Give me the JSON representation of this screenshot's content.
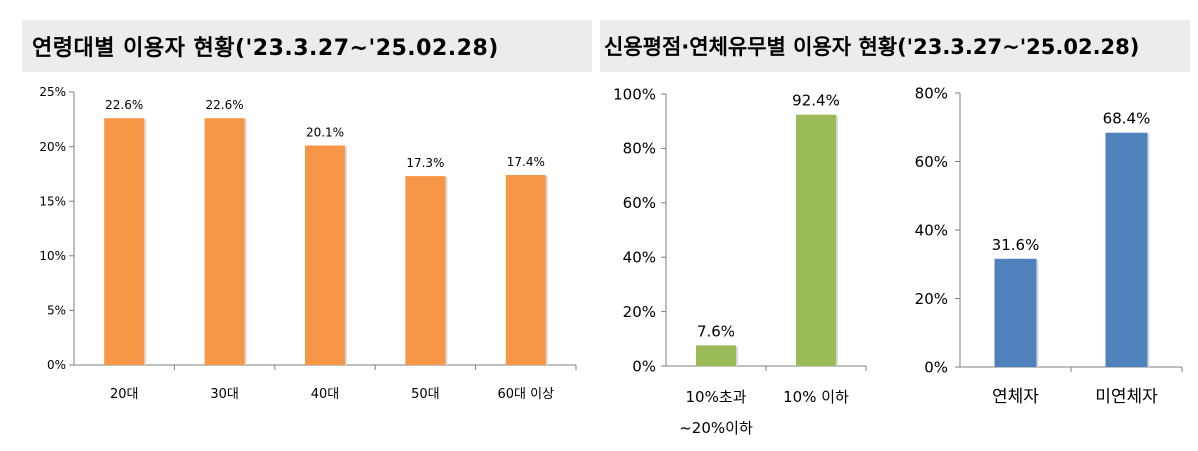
{
  "titles": {
    "left": "연령대별 이용자 현황('23.3.27~'25.02.28)",
    "right": "신용평점·연체유무별 이용자 현황('23.3.27~'25.02.28)"
  },
  "colors": {
    "orange": "#f79646",
    "green": "#9bbb59",
    "blue": "#4f81bd",
    "axis": "#7f7f7f",
    "panel": "#ececec"
  },
  "chart_data": [
    {
      "type": "bar",
      "categories": [
        "20대",
        "30대",
        "40대",
        "50대",
        "60대 이상"
      ],
      "values": [
        22.6,
        22.6,
        20.1,
        17.3,
        17.4
      ],
      "value_labels": [
        "22.6%",
        "22.6%",
        "20.1%",
        "17.3%",
        "17.4%"
      ],
      "y_ticks": [
        "0%",
        "5%",
        "10%",
        "15%",
        "20%",
        "25%"
      ],
      "ylim": [
        0,
        25
      ],
      "unit": "%",
      "color": "orange"
    },
    {
      "type": "bar",
      "categories": [
        [
          "10%초과",
          "~20%이하"
        ],
        [
          "10% 이하"
        ]
      ],
      "values": [
        7.6,
        92.4
      ],
      "value_labels": [
        "7.6%",
        "92.4%"
      ],
      "y_ticks": [
        "0%",
        "20%",
        "40%",
        "60%",
        "80%",
        "100%"
      ],
      "ylim": [
        0,
        100
      ],
      "unit": "%",
      "color": "green"
    },
    {
      "type": "bar",
      "categories": [
        [
          "연체자"
        ],
        [
          "미연체자"
        ]
      ],
      "values": [
        31.6,
        68.4
      ],
      "value_labels": [
        "31.6%",
        "68.4%"
      ],
      "y_ticks": [
        "0%",
        "20%",
        "40%",
        "60%",
        "80%"
      ],
      "ylim": [
        0,
        80
      ],
      "unit": "%",
      "color": "blue"
    }
  ]
}
